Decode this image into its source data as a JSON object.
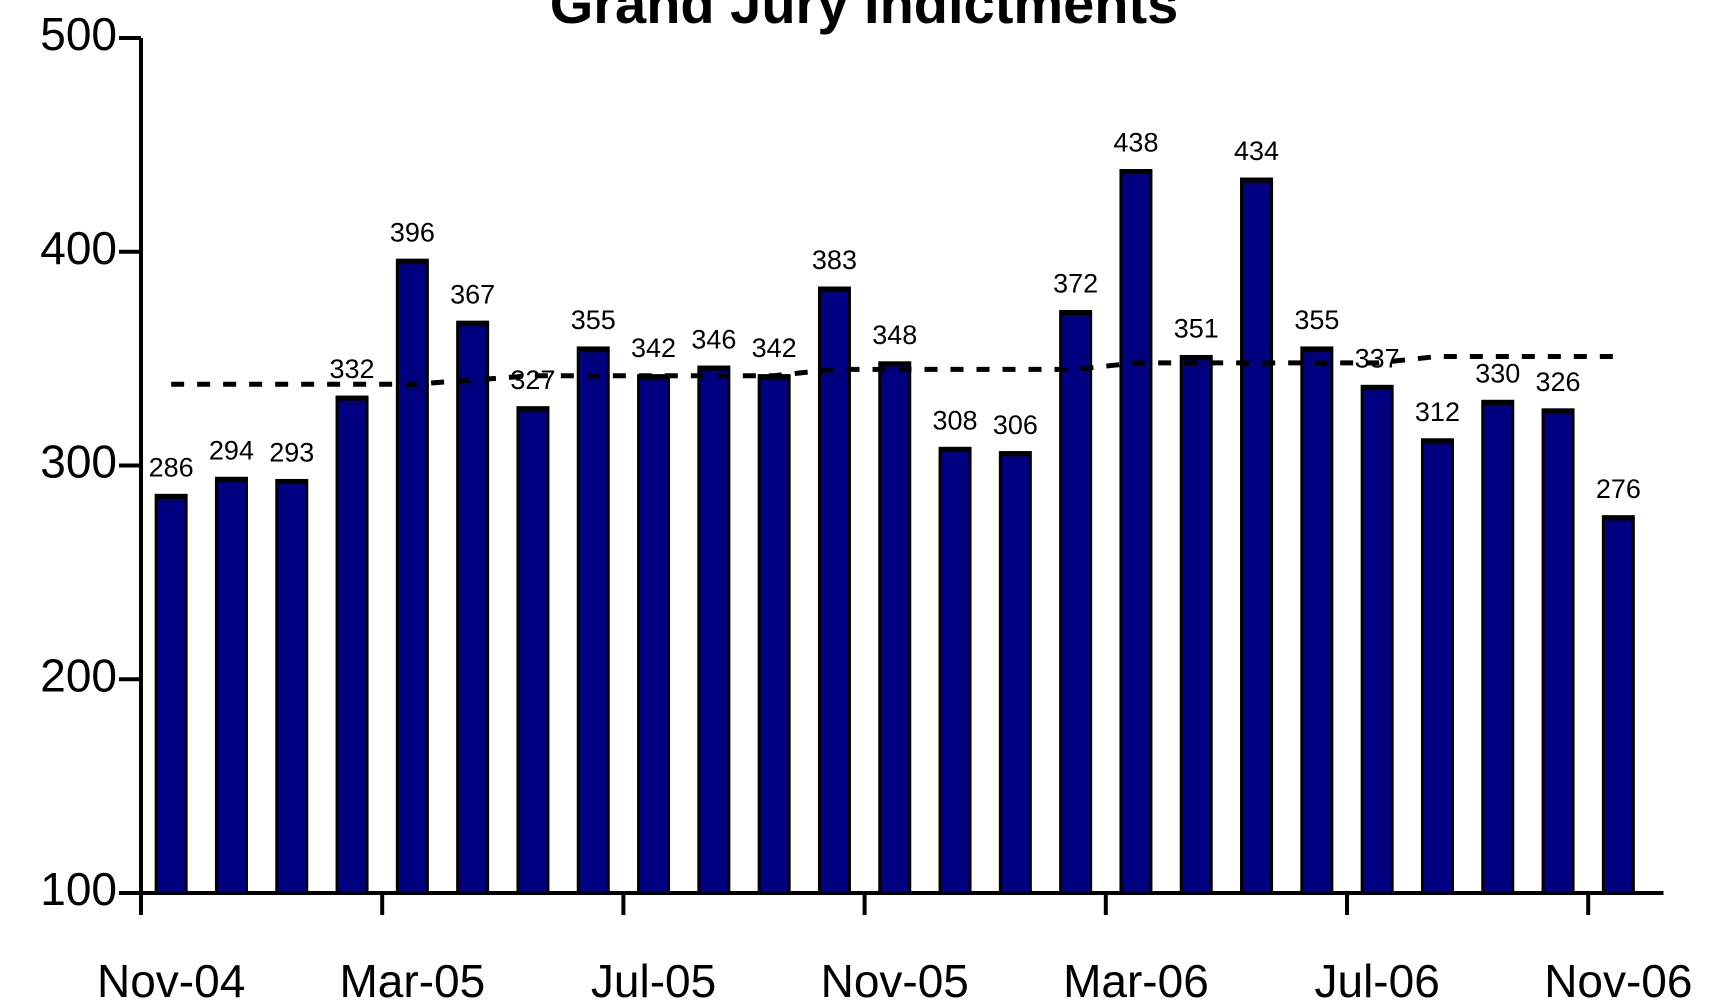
{
  "chart_data": {
    "type": "bar",
    "title": "Grand Jury Indictments",
    "categories": [
      "Nov-04",
      null,
      null,
      null,
      "Mar-05",
      null,
      null,
      null,
      "Jul-05",
      null,
      null,
      null,
      "Nov-05",
      null,
      null,
      null,
      "Mar-06",
      null,
      null,
      null,
      "Jul-06",
      null,
      null,
      null,
      "Nov-06"
    ],
    "values": [
      286,
      294,
      293,
      332,
      396,
      367,
      327,
      355,
      342,
      346,
      342,
      383,
      348,
      308,
      306,
      372,
      438,
      351,
      434,
      355,
      337,
      312,
      330,
      326,
      276
    ],
    "trend": [
      338,
      338,
      338,
      338,
      338,
      340,
      342,
      342,
      342,
      342,
      342,
      345,
      345,
      345,
      345,
      345,
      348,
      348,
      348,
      348,
      348,
      351,
      351,
      351,
      351
    ],
    "color": "#000080",
    "ylim": [
      100,
      500
    ],
    "yticks": [
      100,
      200,
      300,
      400,
      500
    ]
  }
}
